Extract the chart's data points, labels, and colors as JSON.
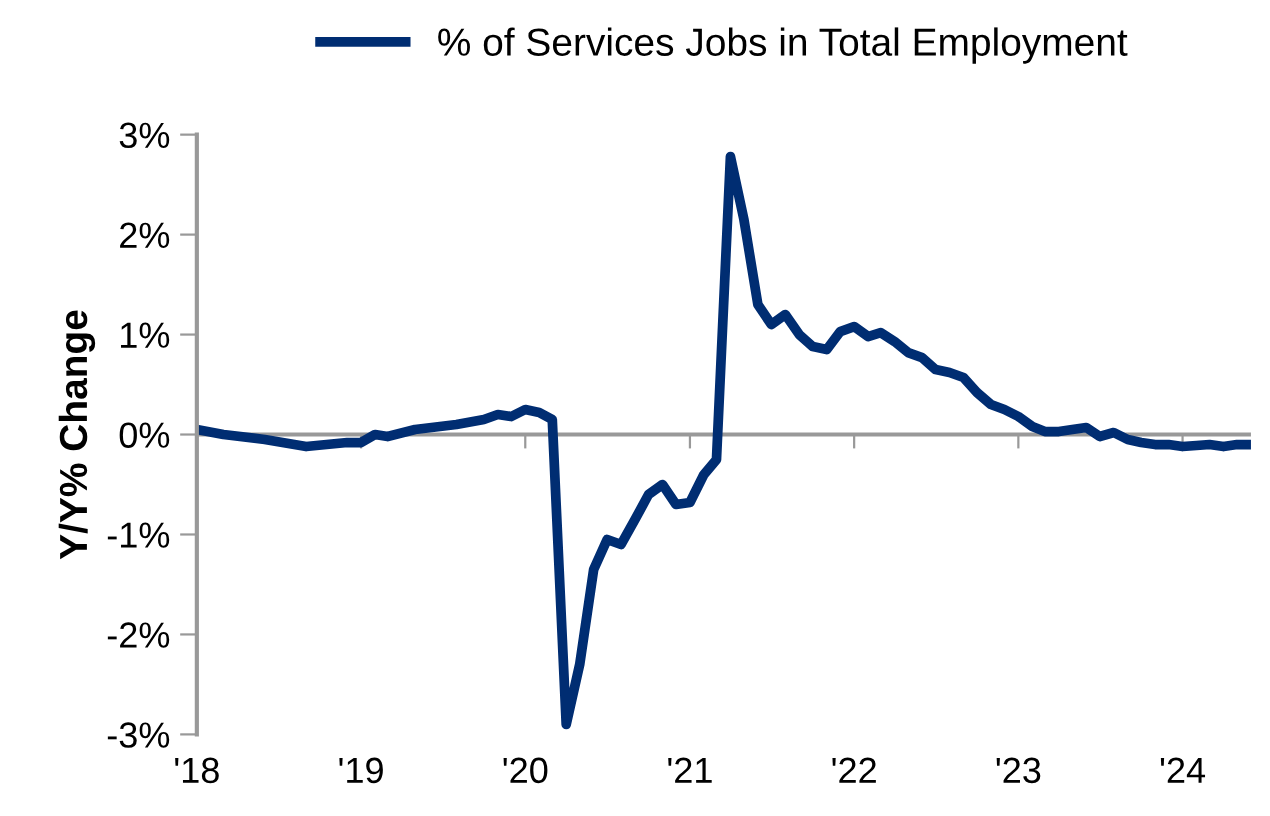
{
  "chart_data": {
    "type": "line",
    "ylabel": "Y/Y% Change",
    "legend": "top",
    "ref_lines": [
      {
        "axis": "y",
        "value": 0,
        "color": "#999999"
      }
    ],
    "marker": "none",
    "line_style": "solid",
    "xlim": [
      "2018-01",
      "2024-06"
    ],
    "xticks": [
      {
        "value": "2018-01",
        "label": "'18"
      },
      {
        "value": "2019-01",
        "label": "'19"
      },
      {
        "value": "2020-01",
        "label": "'20"
      },
      {
        "value": "2021-01",
        "label": "'21"
      },
      {
        "value": "2022-01",
        "label": "'22"
      },
      {
        "value": "2023-01",
        "label": "'23"
      },
      {
        "value": "2024-01",
        "label": "'24"
      }
    ],
    "ylim": [
      -3,
      3
    ],
    "yticks": [
      {
        "value": -3,
        "label": "-3%"
      },
      {
        "value": -2,
        "label": "-2%"
      },
      {
        "value": -1,
        "label": "-1%"
      },
      {
        "value": 0,
        "label": "0%"
      },
      {
        "value": 1,
        "label": "1%"
      },
      {
        "value": 2,
        "label": "2%"
      },
      {
        "value": 3,
        "label": "3%"
      }
    ],
    "x": [
      "2018-01",
      "2018-03",
      "2018-06",
      "2018-09",
      "2018-12",
      "2019-01",
      "2019-02",
      "2019-03",
      "2019-05",
      "2019-08",
      "2019-10",
      "2019-11",
      "2019-12",
      "2020-01",
      "2020-02",
      "2020-03",
      "2020-04",
      "2020-05",
      "2020-06",
      "2020-07",
      "2020-08",
      "2020-09",
      "2020-10",
      "2020-11",
      "2020-12",
      "2021-01",
      "2021-02",
      "2021-03",
      "2021-04",
      "2021-05",
      "2021-06",
      "2021-07",
      "2021-08",
      "2021-09",
      "2021-10",
      "2021-11",
      "2021-12",
      "2022-01",
      "2022-02",
      "2022-03",
      "2022-04",
      "2022-05",
      "2022-06",
      "2022-07",
      "2022-08",
      "2022-09",
      "2022-10",
      "2022-11",
      "2022-12",
      "2023-01",
      "2023-02",
      "2023-03",
      "2023-04",
      "2023-05",
      "2023-06",
      "2023-07",
      "2023-08",
      "2023-09",
      "2023-10",
      "2023-11",
      "2023-12",
      "2024-01",
      "2024-02",
      "2024-03",
      "2024-04",
      "2024-05",
      "2024-06"
    ],
    "series": [
      {
        "name": "% of Services Jobs in Total Employment",
        "color": "#002d72",
        "values": [
          0.05,
          0.0,
          -0.05,
          -0.12,
          -0.08,
          -0.08,
          0.0,
          -0.02,
          0.05,
          0.1,
          0.15,
          0.2,
          0.18,
          0.25,
          0.22,
          0.15,
          -2.9,
          -2.3,
          -1.35,
          -1.05,
          -1.1,
          -0.85,
          -0.6,
          -0.5,
          -0.7,
          -0.68,
          -0.4,
          -0.25,
          2.78,
          2.15,
          1.3,
          1.1,
          1.2,
          1.0,
          0.88,
          0.85,
          1.03,
          1.08,
          0.98,
          1.02,
          0.93,
          0.82,
          0.77,
          0.65,
          0.62,
          0.57,
          0.42,
          0.3,
          0.25,
          0.18,
          0.08,
          0.03,
          0.03,
          0.05,
          0.07,
          -0.02,
          0.02,
          -0.05,
          -0.08,
          -0.1,
          -0.1,
          -0.12,
          -0.11,
          -0.1,
          -0.12,
          -0.1,
          -0.1
        ]
      }
    ]
  }
}
